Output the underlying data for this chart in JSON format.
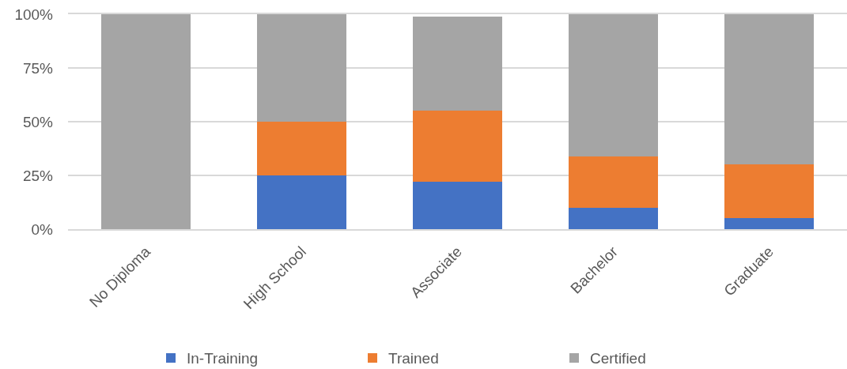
{
  "chart_data": {
    "type": "bar",
    "stacked": true,
    "categories": [
      "No Diploma",
      "High School",
      "Associate",
      "Bachelor",
      "Graduate"
    ],
    "series": [
      {
        "name": "In-Training",
        "color": "#4472c4",
        "values": [
          0,
          25,
          22,
          10,
          5
        ]
      },
      {
        "name": "Trained",
        "color": "#ed7d31",
        "values": [
          0,
          25,
          33,
          24,
          25
        ]
      },
      {
        "name": "Certified",
        "color": "#a5a5a5",
        "values": [
          100,
          50,
          44,
          66,
          70
        ]
      }
    ],
    "ylim": [
      0,
      100
    ],
    "yticks": [
      {
        "value": 0,
        "label": "0%"
      },
      {
        "value": 25,
        "label": "25%"
      },
      {
        "value": 50,
        "label": "50%"
      },
      {
        "value": 75,
        "label": "75%"
      },
      {
        "value": 100,
        "label": "100%"
      }
    ],
    "grid": "y",
    "legend": "bottom"
  }
}
